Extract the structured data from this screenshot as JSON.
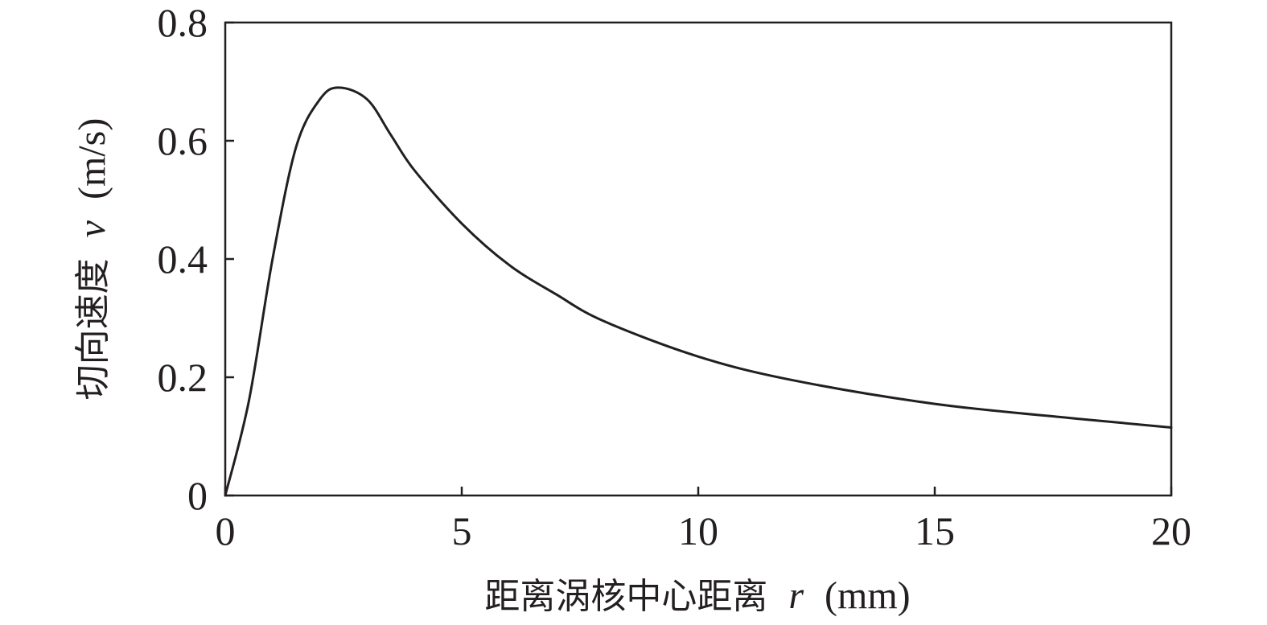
{
  "chart_data": {
    "type": "line",
    "title": "",
    "xlabel": {
      "text": "距离涡核中心距离",
      "var": "r",
      "unit": "(mm)"
    },
    "ylabel": {
      "text": "切向速度",
      "var": "v",
      "unit": "(m/s)"
    },
    "xlim": [
      0,
      20
    ],
    "ylim": [
      0,
      0.8
    ],
    "xticks": [
      0,
      5,
      10,
      15,
      20
    ],
    "xtick_labels": [
      "0",
      "5",
      "10",
      "15",
      "20"
    ],
    "yticks": [
      0,
      0.2,
      0.4,
      0.6,
      0.8
    ],
    "ytick_labels": [
      "0",
      "0.2",
      "0.4",
      "0.6",
      "0.8"
    ],
    "grid": false,
    "legend": "none",
    "line_color": "#231f20",
    "series": [
      {
        "x": [
          0,
          0.5,
          1,
          1.5,
          2,
          2.4,
          3,
          3.5,
          4,
          5,
          6,
          7,
          8,
          10,
          12,
          15,
          18,
          20
        ],
        "y": [
          0,
          0.16,
          0.4,
          0.59,
          0.67,
          0.69,
          0.67,
          0.61,
          0.55,
          0.46,
          0.39,
          0.34,
          0.295,
          0.235,
          0.195,
          0.155,
          0.13,
          0.115
        ]
      }
    ]
  }
}
